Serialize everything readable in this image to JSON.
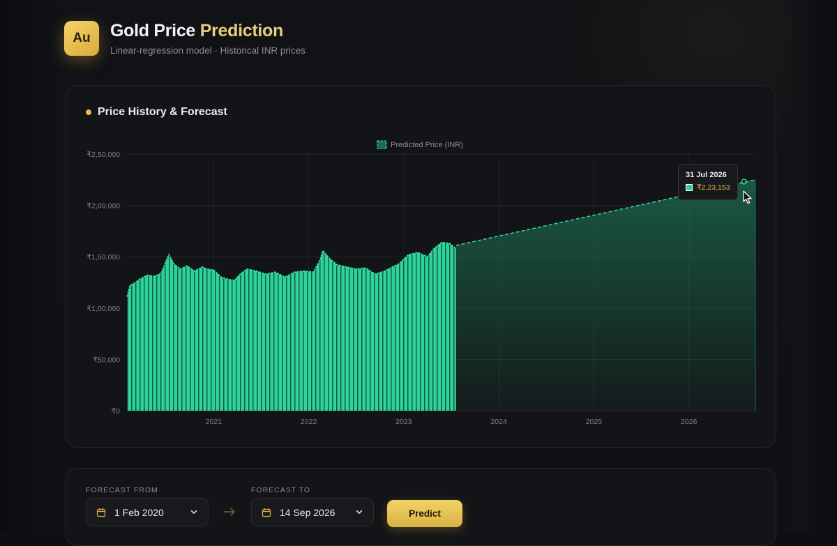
{
  "header": {
    "logo_text": "Au",
    "title_part1": "Gold Price",
    "title_part2": "Prediction",
    "subtitle": "Linear-regression model · Historical INR prices"
  },
  "chart_card": {
    "title": "Price History & Forecast"
  },
  "chart_data": {
    "type": "area",
    "title": "",
    "xlabel": "",
    "ylabel": "",
    "legend": {
      "label": "Predicted Price (INR)",
      "position": "top-center"
    },
    "ylim": [
      0,
      250000
    ],
    "y_ticks": [
      {
        "value": 0,
        "label": "₹0"
      },
      {
        "value": 50000,
        "label": "₹50,000"
      },
      {
        "value": 100000,
        "label": "₹1,00,000"
      },
      {
        "value": 150000,
        "label": "₹1,50,000"
      },
      {
        "value": 200000,
        "label": "₹2,00,000"
      },
      {
        "value": 250000,
        "label": "₹2,50,000"
      }
    ],
    "xlim": [
      2020.08,
      2026.7
    ],
    "x_ticks": [
      {
        "value": 2021,
        "label": "2021"
      },
      {
        "value": 2022,
        "label": "2022"
      },
      {
        "value": 2023,
        "label": "2023"
      },
      {
        "value": 2024,
        "label": "2024"
      },
      {
        "value": 2025,
        "label": "2025"
      },
      {
        "value": 2026,
        "label": "2026"
      }
    ],
    "grid": true,
    "history": {
      "x": [
        2020.09,
        2020.12,
        2020.18,
        2020.22,
        2020.3,
        2020.38,
        2020.45,
        2020.5,
        2020.53,
        2020.58,
        2020.65,
        2020.72,
        2020.8,
        2020.88,
        2020.93,
        2021.0,
        2021.08,
        2021.15,
        2021.22,
        2021.28,
        2021.35,
        2021.45,
        2021.55,
        2021.65,
        2021.75,
        2021.85,
        2021.95,
        2022.05,
        2022.12,
        2022.15,
        2022.22,
        2022.3,
        2022.4,
        2022.5,
        2022.6,
        2022.7,
        2022.8,
        2022.88,
        2022.95,
        2023.05,
        2023.15,
        2023.25,
        2023.32,
        2023.4,
        2023.48,
        2023.55
      ],
      "values": [
        111000,
        122000,
        125000,
        128000,
        132000,
        131000,
        134000,
        146000,
        152000,
        143000,
        138000,
        141000,
        136000,
        140000,
        138000,
        137000,
        130000,
        128000,
        127000,
        133000,
        138000,
        136000,
        133000,
        135000,
        130000,
        135000,
        136000,
        135000,
        147000,
        156000,
        148000,
        142000,
        140000,
        138000,
        139000,
        133000,
        136000,
        140000,
        143000,
        152000,
        154000,
        150000,
        158000,
        164000,
        163000,
        158000
      ]
    },
    "forecast": {
      "x": [
        2023.55,
        2026.7
      ],
      "values": [
        161000,
        225000
      ]
    },
    "tooltip": {
      "date": "31 Jul 2026",
      "value": "₹2,23,153",
      "x": 2026.58,
      "y": 223153
    }
  },
  "controls": {
    "from_label": "FORECAST FROM",
    "from_value": "1 Feb 2020",
    "to_label": "FORECAST TO",
    "to_value": "14 Sep 2026",
    "predict_label": "Predict"
  },
  "colors": {
    "accent_gold": "#e8bf45",
    "series_green": "#2fd39a",
    "background": "#0e0f12"
  }
}
